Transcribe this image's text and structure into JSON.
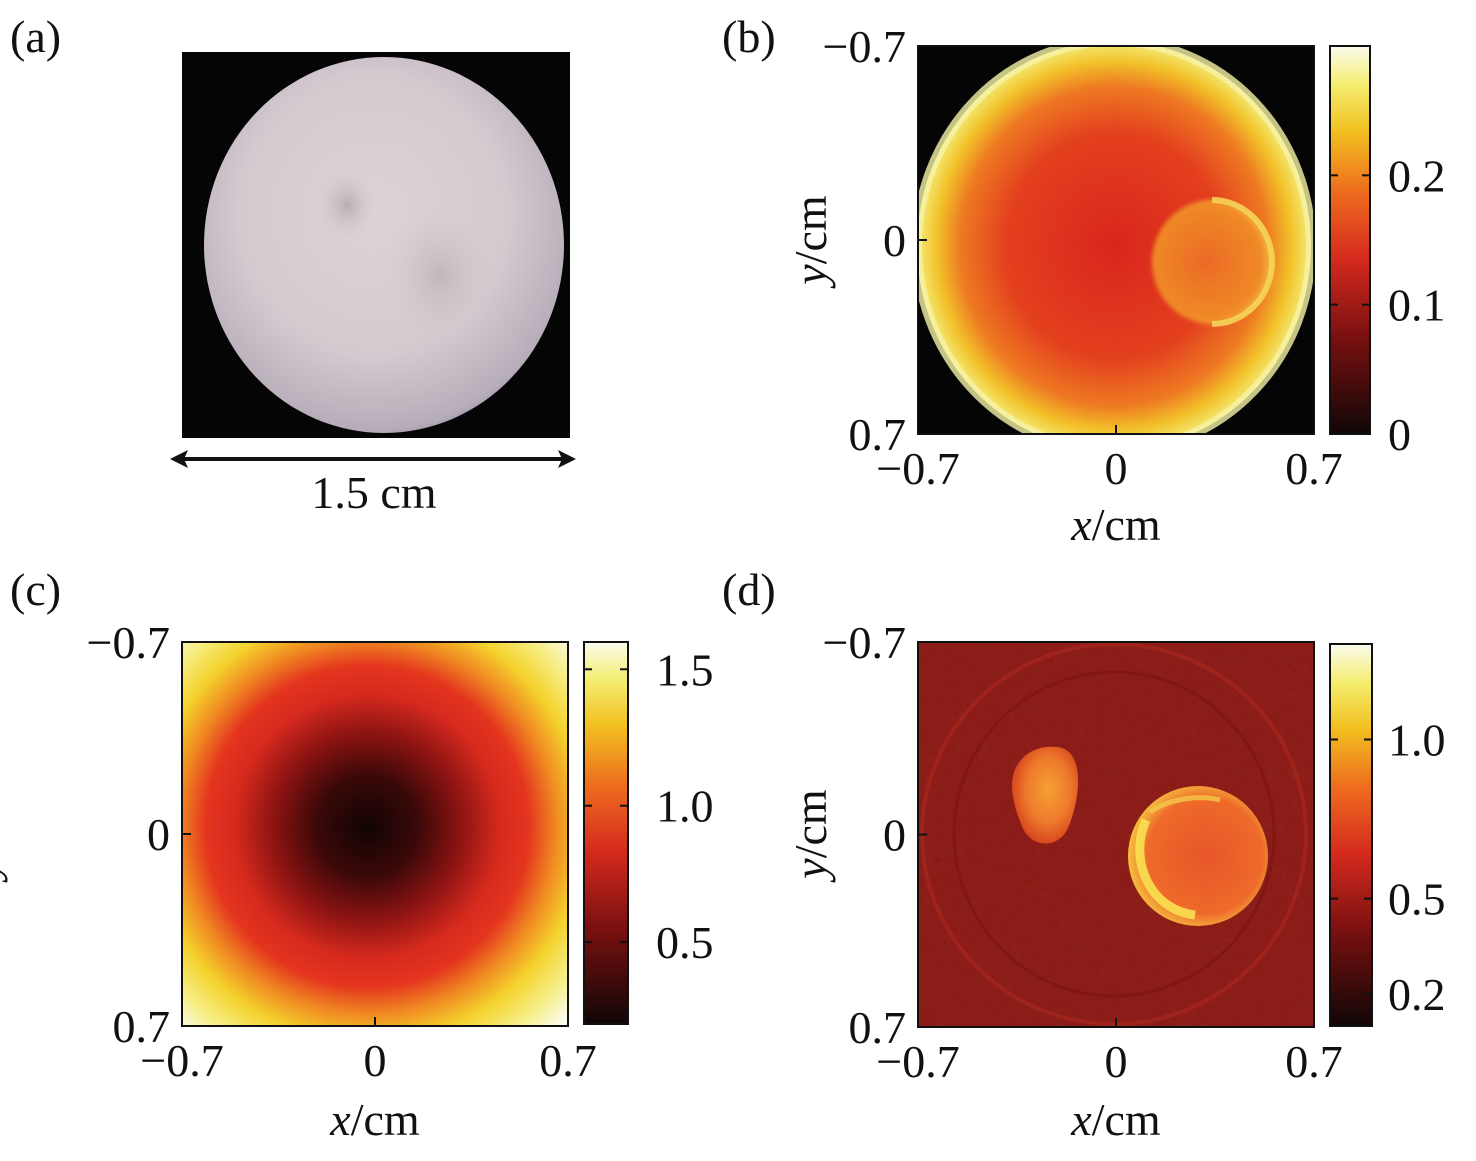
{
  "figure": {
    "panels": [
      "(a)",
      "(b)",
      "(c)",
      "(d)"
    ]
  },
  "chart_data": [
    {
      "panel": "(a)",
      "type": "image",
      "scale_bar": "1.5 cm"
    },
    {
      "panel": "(b)",
      "type": "heatmap",
      "xlabel": "x/cm",
      "ylabel": "y/cm",
      "xlim": [
        -0.7,
        0.7
      ],
      "ylim": [
        -0.7,
        0.7
      ],
      "xticks": [
        -0.7,
        0,
        0.7
      ],
      "yticks": [
        -0.7,
        0,
        0.7
      ],
      "xtick_labels": [
        "−0.7",
        "0",
        "0.7"
      ],
      "ytick_labels": [
        "−0.7",
        "0",
        "0.7"
      ],
      "colorbar": {
        "min": 0,
        "max": 0.3,
        "ticks": [
          0,
          0.1,
          0.2
        ],
        "labels": [
          "0",
          "0.1",
          "0.2"
        ]
      },
      "features": [
        {
          "shape": "disc",
          "center": [
            0,
            0
          ],
          "radius": 0.7,
          "value_center": 0.12,
          "value_edge": 0.24
        },
        {
          "shape": "circle",
          "center": [
            0.4,
            -0.1
          ],
          "radius": 0.16,
          "value": 0.17
        }
      ]
    },
    {
      "panel": "(c)",
      "type": "heatmap",
      "xlabel": "x/cm",
      "ylabel": "y/cm",
      "xlim": [
        -0.7,
        0.7
      ],
      "ylim": [
        -0.7,
        0.7
      ],
      "xticks": [
        -0.7,
        0,
        0.7
      ],
      "yticks": [
        -0.7,
        0,
        0.7
      ],
      "xtick_labels": [
        "−0.7",
        "0",
        "0.7"
      ],
      "ytick_labels": [
        "−0.7",
        "0",
        "0.7"
      ],
      "colorbar": {
        "min": 0.2,
        "max": 1.6,
        "ticks": [
          0.5,
          1.0,
          1.5
        ],
        "labels": [
          "0.5",
          "1.0",
          "1.5"
        ]
      },
      "features": [
        {
          "shape": "radial",
          "center": [
            -0.05,
            0.0
          ],
          "value_center": 0.25,
          "value_r05": 0.9,
          "value_corner": 1.6
        }
      ]
    },
    {
      "panel": "(d)",
      "type": "heatmap",
      "xlabel": "x/cm",
      "ylabel": "y/cm",
      "xlim": [
        -0.7,
        0.7
      ],
      "ylim": [
        -0.7,
        0.7
      ],
      "xticks": [
        -0.7,
        0,
        0.7
      ],
      "yticks": [
        -0.7,
        0,
        0.7
      ],
      "xtick_labels": [
        "−0.7",
        "0",
        "0.7"
      ],
      "ytick_labels": [
        "−0.7",
        "0",
        "0.7"
      ],
      "colorbar": {
        "min": 0.1,
        "max": 1.3,
        "ticks": [
          0.2,
          0.5,
          1.0
        ],
        "labels": [
          "0.2",
          "0.5",
          "1.0"
        ]
      },
      "features": [
        {
          "shape": "background",
          "value": 0.3
        },
        {
          "shape": "ellipse",
          "center": [
            -0.26,
            -0.17
          ],
          "rx": 0.12,
          "ry": 0.17,
          "value": 0.6
        },
        {
          "shape": "ellipse",
          "center": [
            0.26,
            0.1
          ],
          "rx": 0.2,
          "ry": 0.2,
          "value": 0.7
        }
      ]
    }
  ]
}
